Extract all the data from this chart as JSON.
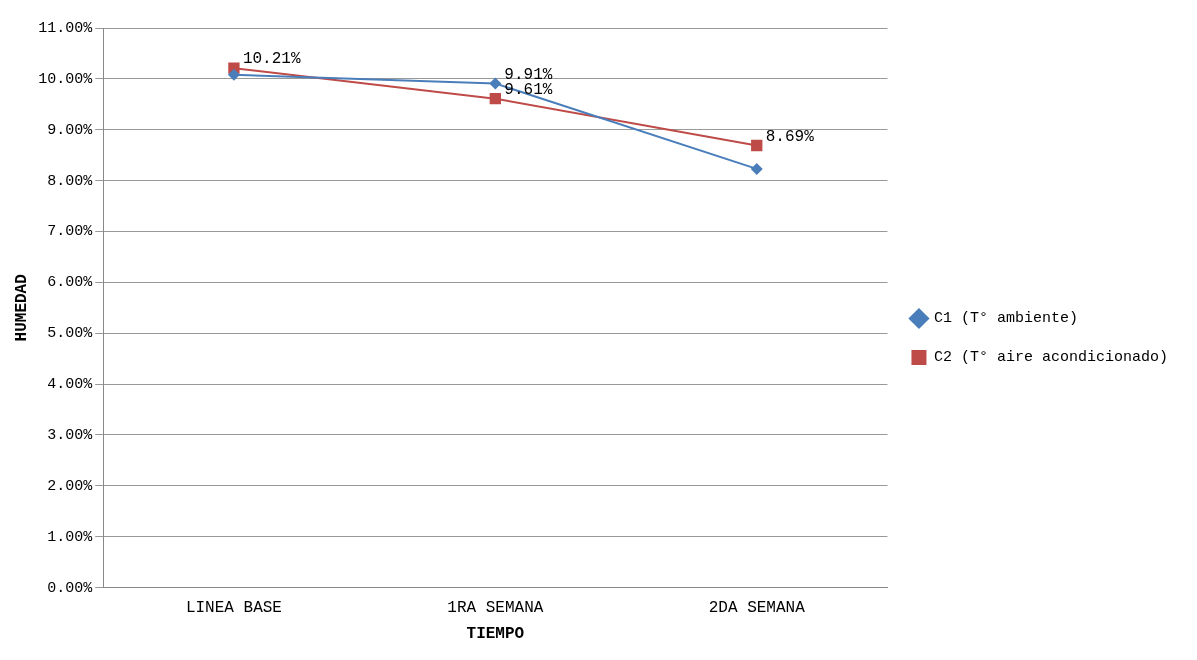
{
  "chart_data": {
    "type": "line",
    "xlabel": "TIEMPO",
    "ylabel": "HUMEDAD",
    "categories": [
      "LINEA BASE",
      "1RA SEMANA",
      "2DA SEMANA"
    ],
    "series": [
      {
        "name": "C1 (T° ambiente)",
        "color": "#4a7ebb",
        "marker": "diamond",
        "values": [
          10.08,
          9.91,
          8.23
        ],
        "value_labels": [
          null,
          "9.91%",
          null
        ]
      },
      {
        "name": "C2 (T° aire acondicionado)",
        "color": "#be4b48",
        "marker": "square",
        "values": [
          10.21,
          9.61,
          8.69
        ],
        "value_labels": [
          "10.21%",
          "9.61%",
          "8.69%"
        ]
      }
    ],
    "ylim": [
      0,
      11
    ],
    "yticks": [
      {
        "value": 0,
        "label": "0.00%"
      },
      {
        "value": 1,
        "label": "1.00%"
      },
      {
        "value": 2,
        "label": "2.00%"
      },
      {
        "value": 3,
        "label": "3.00%"
      },
      {
        "value": 4,
        "label": "4.00%"
      },
      {
        "value": 5,
        "label": "5.00%"
      },
      {
        "value": 6,
        "label": "6.00%"
      },
      {
        "value": 7,
        "label": "7.00%"
      },
      {
        "value": 8,
        "label": "8.00%"
      },
      {
        "value": 9,
        "label": "9.00%"
      },
      {
        "value": 10,
        "label": "10.00%"
      },
      {
        "value": 11,
        "label": "11.00%"
      }
    ],
    "grid": "y",
    "legend": "right",
    "line_style": "solid"
  }
}
